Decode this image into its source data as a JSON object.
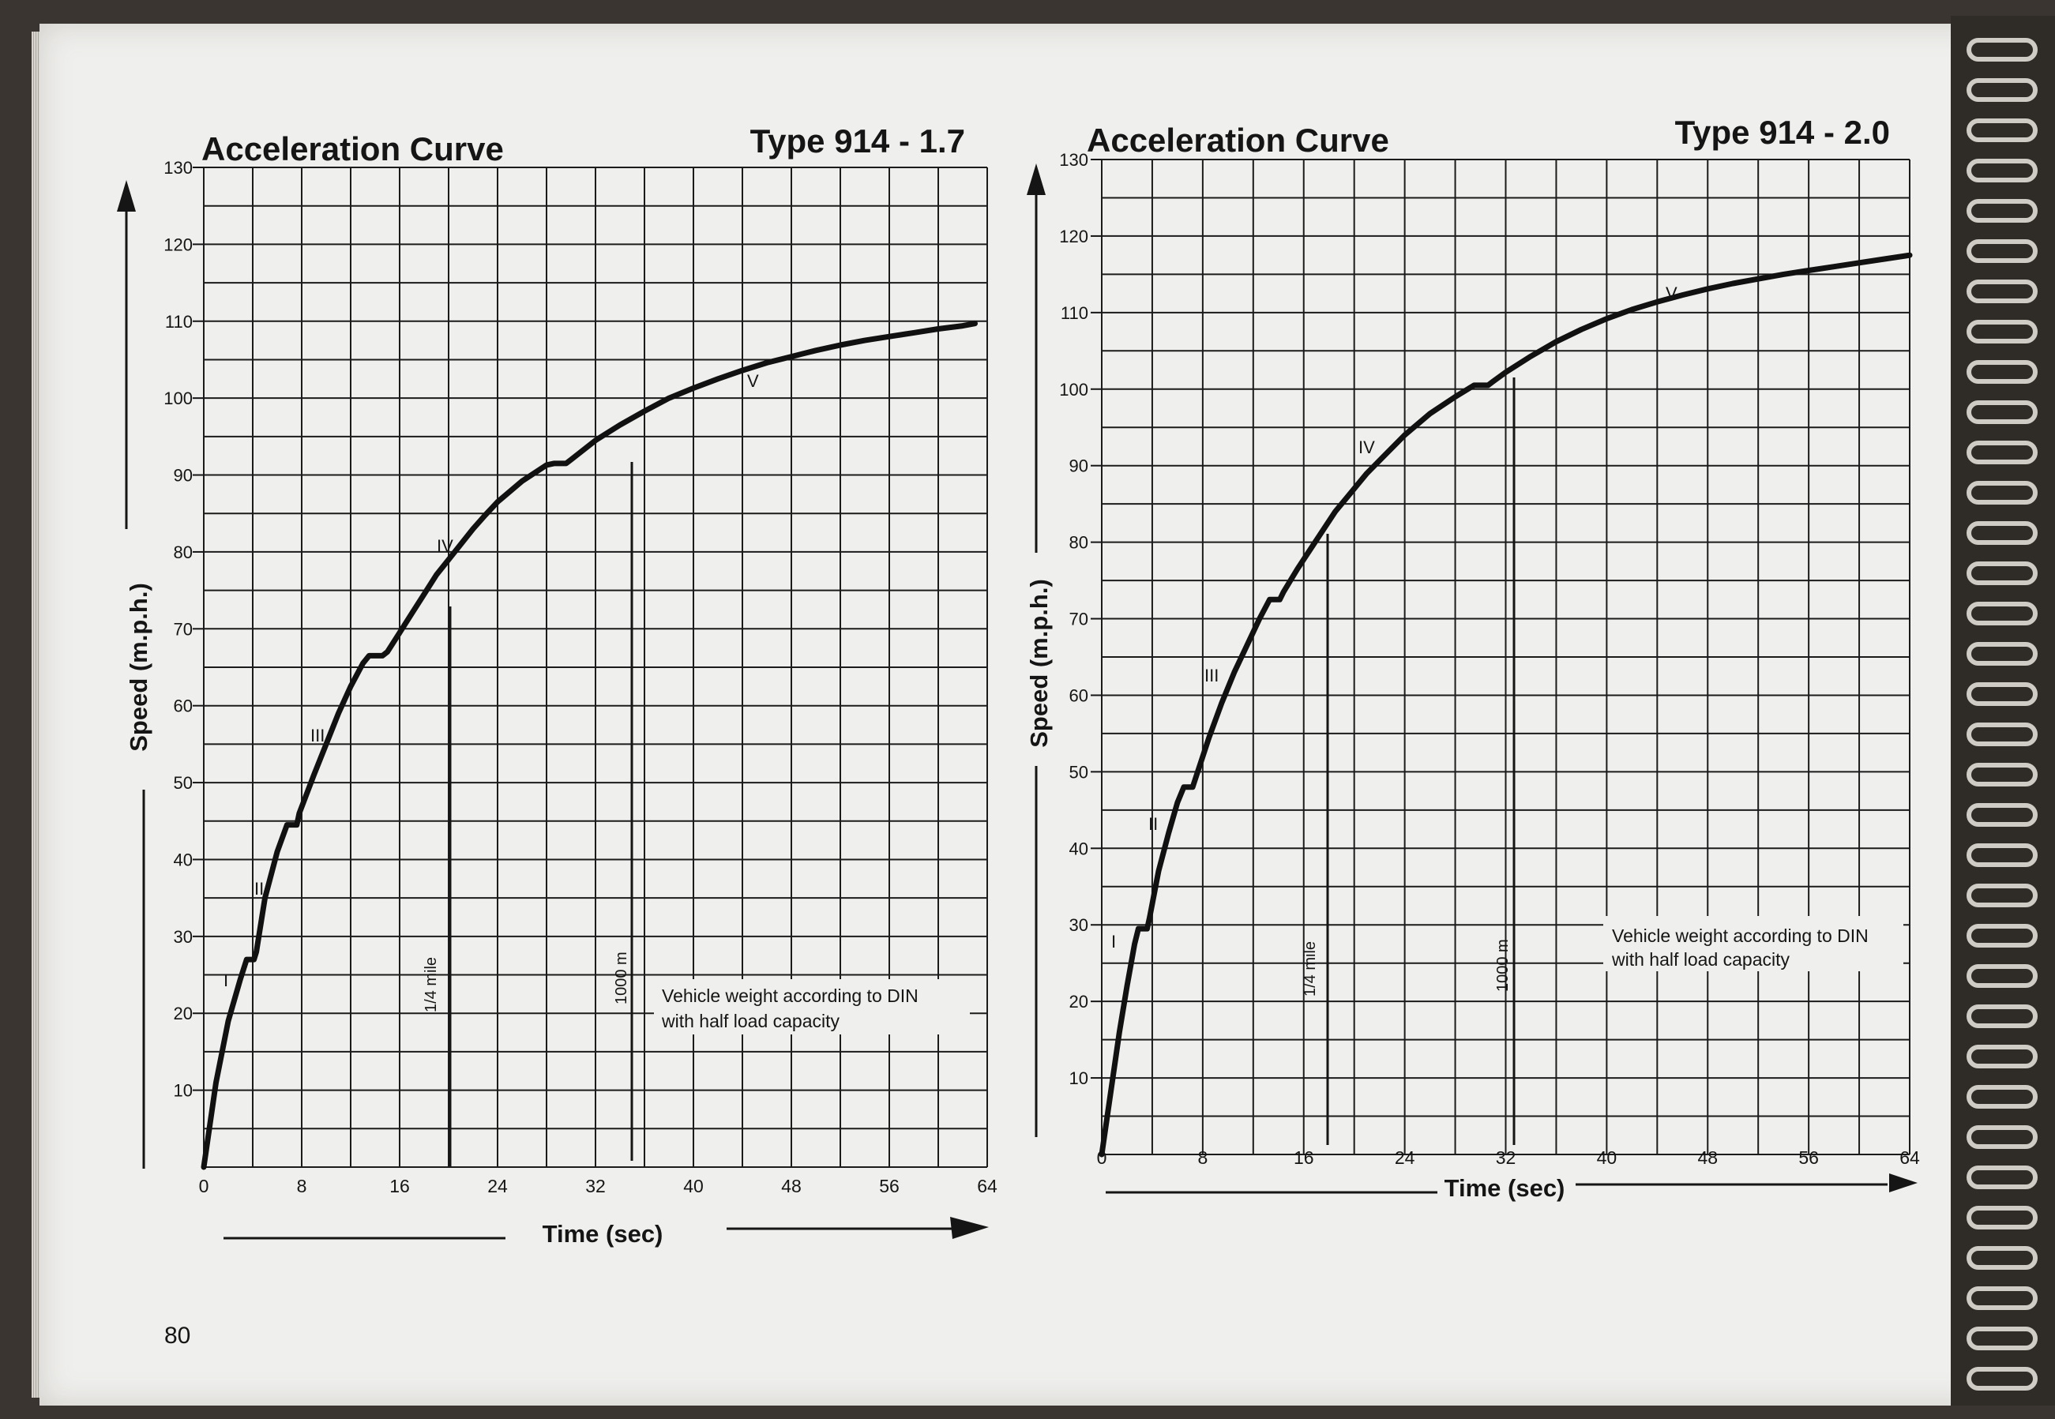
{
  "page_number": "80",
  "chart_data": [
    {
      "type": "line",
      "title": "Acceleration Curve",
      "subtitle": "Type 914 - 1.7",
      "xlabel": "Time (sec)",
      "ylabel": "Speed (m.p.h.)",
      "xlim": [
        0,
        64
      ],
      "ylim": [
        0,
        130
      ],
      "xticks": [
        "0",
        "8",
        "16",
        "24",
        "32",
        "40",
        "48",
        "56",
        "64"
      ],
      "yticks": [
        "10",
        "20",
        "30",
        "40",
        "50",
        "60",
        "70",
        "80",
        "90",
        "100",
        "110",
        "120",
        "130"
      ],
      "grid": true,
      "series": [
        {
          "x": [
            0,
            1,
            2,
            3,
            3.5,
            4.1,
            4.3,
            5,
            6,
            6.8,
            7.6,
            7.8,
            9,
            10,
            11,
            12,
            13,
            13.5,
            14.6,
            15,
            16,
            17,
            18,
            19,
            20,
            21,
            22,
            23,
            24,
            26,
            28,
            28.6,
            29.6,
            30,
            32,
            34,
            36,
            38,
            40,
            42,
            44,
            46,
            48,
            50,
            52,
            54,
            56,
            58,
            60,
            62,
            63
          ],
          "y": [
            0,
            11,
            19,
            24.5,
            27,
            27,
            28,
            35,
            41,
            44.5,
            44.5,
            46,
            51,
            55,
            59,
            62.5,
            65.5,
            66.5,
            66.5,
            67,
            69.5,
            72,
            74.5,
            77,
            79,
            81,
            83,
            84.8,
            86.5,
            89.2,
            91.3,
            91.5,
            91.5,
            92,
            94.5,
            96.5,
            98.3,
            100,
            101.3,
            102.5,
            103.6,
            104.6,
            105.4,
            106.2,
            106.9,
            107.5,
            108,
            108.5,
            109,
            109.4,
            109.7
          ]
        }
      ],
      "gears": [
        "I",
        "II",
        "III",
        "IV",
        "V"
      ],
      "markers": [
        "1/4 mile",
        "1000 m"
      ],
      "note_lines": [
        "Vehicle weight according to DIN",
        "with half load capacity"
      ]
    },
    {
      "type": "line",
      "title": "Acceleration Curve",
      "subtitle": "Type 914 - 2.0",
      "xlabel": "Time (sec)",
      "ylabel": "Speed (m.p.h.)",
      "xlim": [
        0,
        64
      ],
      "ylim": [
        0,
        130
      ],
      "xticks": [
        "0",
        "8",
        "16",
        "24",
        "32",
        "40",
        "48",
        "56",
        "64"
      ],
      "yticks": [
        "10",
        "20",
        "30",
        "40",
        "50",
        "60",
        "70",
        "80",
        "90",
        "100",
        "110",
        "120",
        "130"
      ],
      "grid": true,
      "series": [
        {
          "x": [
            0,
            0.7,
            1.4,
            2,
            2.6,
            2.9,
            3.6,
            3.8,
            4.5,
            5.3,
            6,
            6.5,
            7.2,
            7.5,
            8.5,
            9.5,
            10.5,
            11.5,
            12.5,
            13.3,
            14.1,
            14.4,
            15.5,
            16.5,
            17.5,
            18.5,
            19.5,
            21,
            22.5,
            24,
            26,
            28,
            29.5,
            30.6,
            31,
            32,
            34,
            36,
            38,
            40,
            42,
            44,
            46,
            48,
            50,
            52,
            54,
            56,
            58,
            60,
            62,
            64
          ],
          "y": [
            0,
            8,
            16,
            22,
            27.5,
            29.5,
            29.5,
            31,
            37,
            42,
            46,
            48,
            48,
            49.5,
            54.5,
            59,
            63,
            66.5,
            70,
            72.5,
            72.5,
            73.5,
            76.5,
            79,
            81.5,
            84,
            86,
            89,
            91.5,
            94,
            96.8,
            99,
            100.5,
            100.5,
            101,
            102.2,
            104.3,
            106.2,
            107.8,
            109.2,
            110.4,
            111.4,
            112.3,
            113.1,
            113.8,
            114.4,
            115,
            115.5,
            116,
            116.5,
            117,
            117.5
          ]
        }
      ],
      "gears": [
        "I",
        "II",
        "III",
        "IV",
        "V"
      ],
      "markers": [
        "1/4 mile",
        "1000 m"
      ],
      "note_lines": [
        "Vehicle weight according to DIN",
        "with half load capacity"
      ]
    }
  ]
}
